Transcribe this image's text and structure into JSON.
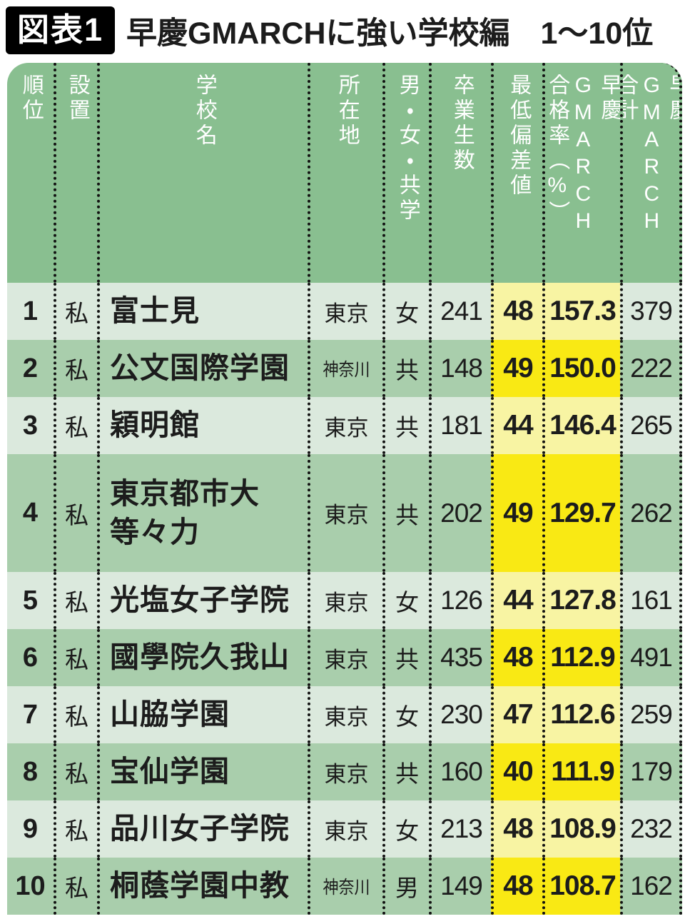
{
  "figure": {
    "badge": "図表1",
    "title": "早慶GMARCHに強い学校編　1〜10位"
  },
  "chart_data": {
    "type": "table",
    "title": "早慶GMARCHに強い学校編 1〜10位",
    "figure_label": "図表1",
    "columns": [
      {
        "key": "rank",
        "label": "順位"
      },
      {
        "key": "type",
        "label": "設置"
      },
      {
        "key": "name",
        "label": "学校名"
      },
      {
        "key": "location",
        "label": "所在地"
      },
      {
        "key": "gender",
        "label": "男・女・共学"
      },
      {
        "key": "graduates",
        "label": "卒業生数"
      },
      {
        "key": "min_dev",
        "label": "最低偏差値"
      },
      {
        "key": "pass_rate",
        "label": "早慶GMARCH\n合格率（%）"
      },
      {
        "key": "total",
        "label": "早慶GMARCH\n合計"
      }
    ],
    "highlighted_columns": [
      "min_dev",
      "pass_rate"
    ],
    "rows": [
      {
        "rank": "1",
        "type": "私",
        "name": "富士見",
        "location": "東京",
        "gender": "女",
        "graduates": "241",
        "min_dev": "48",
        "pass_rate": "157.3",
        "total": "379"
      },
      {
        "rank": "2",
        "type": "私",
        "name": "公文国際学園",
        "location": "神奈川",
        "gender": "共",
        "graduates": "148",
        "min_dev": "49",
        "pass_rate": "150.0",
        "total": "222"
      },
      {
        "rank": "3",
        "type": "私",
        "name": "穎明館",
        "location": "東京",
        "gender": "共",
        "graduates": "181",
        "min_dev": "44",
        "pass_rate": "146.4",
        "total": "265"
      },
      {
        "rank": "4",
        "type": "私",
        "name": "東京都市大\n等々力",
        "location": "東京",
        "gender": "共",
        "graduates": "202",
        "min_dev": "49",
        "pass_rate": "129.7",
        "total": "262"
      },
      {
        "rank": "5",
        "type": "私",
        "name": "光塩女子学院",
        "location": "東京",
        "gender": "女",
        "graduates": "126",
        "min_dev": "44",
        "pass_rate": "127.8",
        "total": "161"
      },
      {
        "rank": "6",
        "type": "私",
        "name": "國學院久我山",
        "location": "東京",
        "gender": "共",
        "graduates": "435",
        "min_dev": "48",
        "pass_rate": "112.9",
        "total": "491"
      },
      {
        "rank": "7",
        "type": "私",
        "name": "山脇学園",
        "location": "東京",
        "gender": "女",
        "graduates": "230",
        "min_dev": "47",
        "pass_rate": "112.6",
        "total": "259"
      },
      {
        "rank": "8",
        "type": "私",
        "name": "宝仙学園",
        "location": "東京",
        "gender": "共",
        "graduates": "160",
        "min_dev": "40",
        "pass_rate": "111.9",
        "total": "179"
      },
      {
        "rank": "9",
        "type": "私",
        "name": "品川女子学院",
        "location": "東京",
        "gender": "女",
        "graduates": "213",
        "min_dev": "48",
        "pass_rate": "108.9",
        "total": "232"
      },
      {
        "rank": "10",
        "type": "私",
        "name": "桐蔭学園中教",
        "location": "神奈川",
        "gender": "男",
        "graduates": "149",
        "min_dev": "48",
        "pass_rate": "108.7",
        "total": "162"
      }
    ]
  },
  "colors": {
    "title_badge_bg": "#000000",
    "header_green": "#89bf90",
    "row_green_light": "#dbe9dd",
    "row_green_dark": "#a9ceac",
    "hl_yellow_light": "#f8f4a3",
    "hl_yellow_bright": "#f9e914"
  }
}
